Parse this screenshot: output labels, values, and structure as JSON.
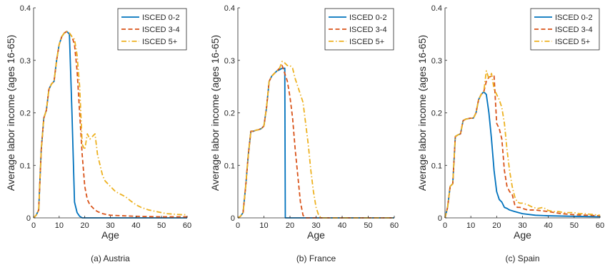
{
  "chart_data": [
    {
      "type": "line",
      "caption": "(a) Austria",
      "xlabel": "Age",
      "ylabel": "Average labor income (ages 16-65)",
      "xlim": [
        0,
        60
      ],
      "ylim": [
        0,
        0.4
      ],
      "xticks": [
        0,
        10,
        20,
        30,
        40,
        50,
        60
      ],
      "yticks": [
        0,
        0.1,
        0.2,
        0.3,
        0.4
      ],
      "grid": false,
      "legend_position": "top-right",
      "series": [
        {
          "name": "ISCED 0-2",
          "color": "#0072BD",
          "style": "solid",
          "x": [
            0,
            1,
            2,
            3,
            4,
            5,
            6,
            7,
            8,
            9,
            10,
            11,
            12,
            13,
            14,
            15,
            16,
            17,
            18,
            19,
            20,
            22,
            25,
            30,
            40,
            50,
            60
          ],
          "y": [
            0,
            0.005,
            0.015,
            0.13,
            0.19,
            0.205,
            0.245,
            0.255,
            0.26,
            0.3,
            0.33,
            0.345,
            0.352,
            0.355,
            0.35,
            0.2,
            0.03,
            0.01,
            0.003,
            0,
            0,
            0,
            0,
            0,
            0,
            0,
            0
          ]
        },
        {
          "name": "ISCED 3-4",
          "color": "#D95319",
          "style": "dashed",
          "x": [
            0,
            1,
            2,
            3,
            4,
            5,
            6,
            7,
            8,
            9,
            10,
            11,
            12,
            13,
            14,
            15,
            16,
            17,
            18,
            19,
            20,
            21,
            22,
            23,
            24,
            25,
            27,
            30,
            35,
            40,
            50,
            60
          ],
          "y": [
            0,
            0.005,
            0.015,
            0.13,
            0.19,
            0.205,
            0.245,
            0.255,
            0.26,
            0.3,
            0.33,
            0.345,
            0.352,
            0.355,
            0.352,
            0.345,
            0.33,
            0.28,
            0.2,
            0.12,
            0.06,
            0.035,
            0.025,
            0.02,
            0.015,
            0.012,
            0.008,
            0.005,
            0.004,
            0.003,
            0.002,
            0.002
          ]
        },
        {
          "name": "ISCED 5+",
          "color": "#EDB120",
          "style": "dashdot",
          "x": [
            0,
            1,
            2,
            3,
            4,
            5,
            6,
            7,
            8,
            9,
            10,
            11,
            12,
            13,
            14,
            15,
            16,
            17,
            18,
            19,
            20,
            21,
            22,
            23,
            24,
            25,
            26,
            27,
            28,
            29,
            30,
            32,
            34,
            36,
            38,
            40,
            42,
            45,
            48,
            50,
            52,
            55,
            58,
            60
          ],
          "y": [
            0,
            0.005,
            0.015,
            0.13,
            0.19,
            0.205,
            0.245,
            0.255,
            0.26,
            0.3,
            0.33,
            0.345,
            0.352,
            0.355,
            0.352,
            0.345,
            0.34,
            0.31,
            0.25,
            0.14,
            0.13,
            0.16,
            0.15,
            0.155,
            0.16,
            0.12,
            0.1,
            0.08,
            0.07,
            0.065,
            0.06,
            0.05,
            0.045,
            0.04,
            0.032,
            0.025,
            0.02,
            0.015,
            0.012,
            0.01,
            0.008,
            0.007,
            0.006,
            0.006
          ]
        }
      ]
    },
    {
      "type": "line",
      "caption": "(b) France",
      "xlabel": "Age",
      "ylabel": "Average labor income (ages 16-65)",
      "xlim": [
        0,
        60
      ],
      "ylim": [
        0,
        0.4
      ],
      "xticks": [
        0,
        10,
        20,
        30,
        40,
        50,
        60
      ],
      "yticks": [
        0,
        0.1,
        0.2,
        0.3,
        0.4
      ],
      "grid": false,
      "legend_position": "top-right",
      "series": [
        {
          "name": "ISCED 0-2",
          "color": "#0072BD",
          "style": "solid",
          "x": [
            0,
            1,
            2,
            3,
            4,
            5,
            6,
            7,
            8,
            9,
            10,
            11,
            12,
            13,
            14,
            15,
            16,
            17,
            18,
            18.2,
            19,
            30,
            60
          ],
          "y": [
            0,
            0.003,
            0.01,
            0.06,
            0.12,
            0.165,
            0.165,
            0.167,
            0.168,
            0.17,
            0.175,
            0.21,
            0.26,
            0.27,
            0.275,
            0.28,
            0.282,
            0.285,
            0.285,
            0,
            0,
            0,
            0
          ]
        },
        {
          "name": "ISCED 3-4",
          "color": "#D95319",
          "style": "dashed",
          "x": [
            0,
            1,
            2,
            3,
            4,
            5,
            6,
            7,
            8,
            9,
            10,
            11,
            12,
            13,
            14,
            15,
            16,
            17,
            18,
            19,
            20,
            21,
            22,
            23,
            24,
            25,
            26,
            30,
            60
          ],
          "y": [
            0,
            0.003,
            0.01,
            0.06,
            0.12,
            0.165,
            0.165,
            0.167,
            0.168,
            0.17,
            0.175,
            0.21,
            0.26,
            0.27,
            0.275,
            0.28,
            0.285,
            0.29,
            0.275,
            0.26,
            0.23,
            0.19,
            0.13,
            0.08,
            0.03,
            0.005,
            0,
            0,
            0
          ]
        },
        {
          "name": "ISCED 5+",
          "color": "#EDB120",
          "style": "dashdot",
          "x": [
            0,
            1,
            2,
            3,
            4,
            5,
            6,
            7,
            8,
            9,
            10,
            11,
            12,
            13,
            14,
            15,
            16,
            17,
            18,
            19,
            20,
            21,
            22,
            23,
            24,
            25,
            26,
            27,
            28,
            29,
            30,
            31,
            32,
            60
          ],
          "y": [
            0,
            0.003,
            0.01,
            0.06,
            0.12,
            0.165,
            0.165,
            0.167,
            0.168,
            0.17,
            0.175,
            0.21,
            0.26,
            0.27,
            0.275,
            0.28,
            0.285,
            0.298,
            0.295,
            0.29,
            0.29,
            0.285,
            0.265,
            0.25,
            0.235,
            0.22,
            0.18,
            0.14,
            0.09,
            0.05,
            0.02,
            0.005,
            0,
            0
          ]
        }
      ]
    },
    {
      "type": "line",
      "caption": "(c) Spain",
      "xlabel": "Age",
      "ylabel": "Average labor income (ages 16-65)",
      "xlim": [
        0,
        60
      ],
      "ylim": [
        0,
        0.4
      ],
      "xticks": [
        0,
        10,
        20,
        30,
        40,
        50,
        60
      ],
      "yticks": [
        0,
        0.1,
        0.2,
        0.3,
        0.4
      ],
      "grid": false,
      "legend_position": "top-right",
      "series": [
        {
          "name": "ISCED 0-2",
          "color": "#0072BD",
          "style": "solid",
          "x": [
            0,
            1,
            2,
            3,
            4,
            5,
            6,
            7,
            8,
            9,
            10,
            11,
            12,
            13,
            14,
            15,
            16,
            17,
            18,
            19,
            20,
            21,
            22,
            23,
            24,
            25,
            27,
            30,
            35,
            40,
            50,
            60
          ],
          "y": [
            0,
            0.02,
            0.06,
            0.065,
            0.155,
            0.158,
            0.16,
            0.185,
            0.188,
            0.189,
            0.19,
            0.19,
            0.2,
            0.225,
            0.235,
            0.24,
            0.235,
            0.2,
            0.15,
            0.09,
            0.05,
            0.035,
            0.03,
            0.02,
            0.018,
            0.015,
            0.012,
            0.008,
            0.005,
            0.004,
            0.003,
            0.002
          ]
        },
        {
          "name": "ISCED 3-4",
          "color": "#D95319",
          "style": "dashed",
          "x": [
            0,
            1,
            2,
            3,
            4,
            5,
            6,
            7,
            8,
            9,
            10,
            11,
            12,
            13,
            14,
            15,
            16,
            17,
            18,
            19,
            20,
            21,
            22,
            23,
            24,
            25,
            26,
            27,
            28,
            29,
            30,
            32,
            35,
            40,
            45,
            50,
            55,
            60
          ],
          "y": [
            0,
            0.02,
            0.06,
            0.065,
            0.155,
            0.158,
            0.16,
            0.185,
            0.188,
            0.189,
            0.19,
            0.19,
            0.2,
            0.225,
            0.235,
            0.24,
            0.26,
            0.268,
            0.27,
            0.27,
            0.18,
            0.17,
            0.15,
            0.09,
            0.06,
            0.05,
            0.045,
            0.025,
            0.02,
            0.02,
            0.018,
            0.015,
            0.015,
            0.012,
            0.008,
            0.006,
            0.005,
            0.004
          ]
        },
        {
          "name": "ISCED 5+",
          "color": "#EDB120",
          "style": "dashdot",
          "x": [
            0,
            1,
            2,
            3,
            4,
            5,
            6,
            7,
            8,
            9,
            10,
            11,
            12,
            13,
            14,
            15,
            16,
            17,
            18,
            19,
            20,
            21,
            22,
            23,
            24,
            25,
            26,
            27,
            28,
            29,
            30,
            32,
            34,
            36,
            38,
            40,
            42,
            44,
            46,
            48,
            50,
            52,
            54,
            56,
            58,
            60
          ],
          "y": [
            0,
            0.02,
            0.06,
            0.065,
            0.155,
            0.158,
            0.16,
            0.185,
            0.188,
            0.189,
            0.19,
            0.19,
            0.2,
            0.225,
            0.235,
            0.24,
            0.28,
            0.265,
            0.275,
            0.245,
            0.235,
            0.225,
            0.21,
            0.18,
            0.13,
            0.09,
            0.06,
            0.04,
            0.03,
            0.028,
            0.028,
            0.025,
            0.02,
            0.018,
            0.02,
            0.014,
            0.012,
            0.012,
            0.01,
            0.01,
            0.01,
            0.008,
            0.008,
            0.007,
            0.006,
            0.005
          ]
        }
      ]
    }
  ]
}
